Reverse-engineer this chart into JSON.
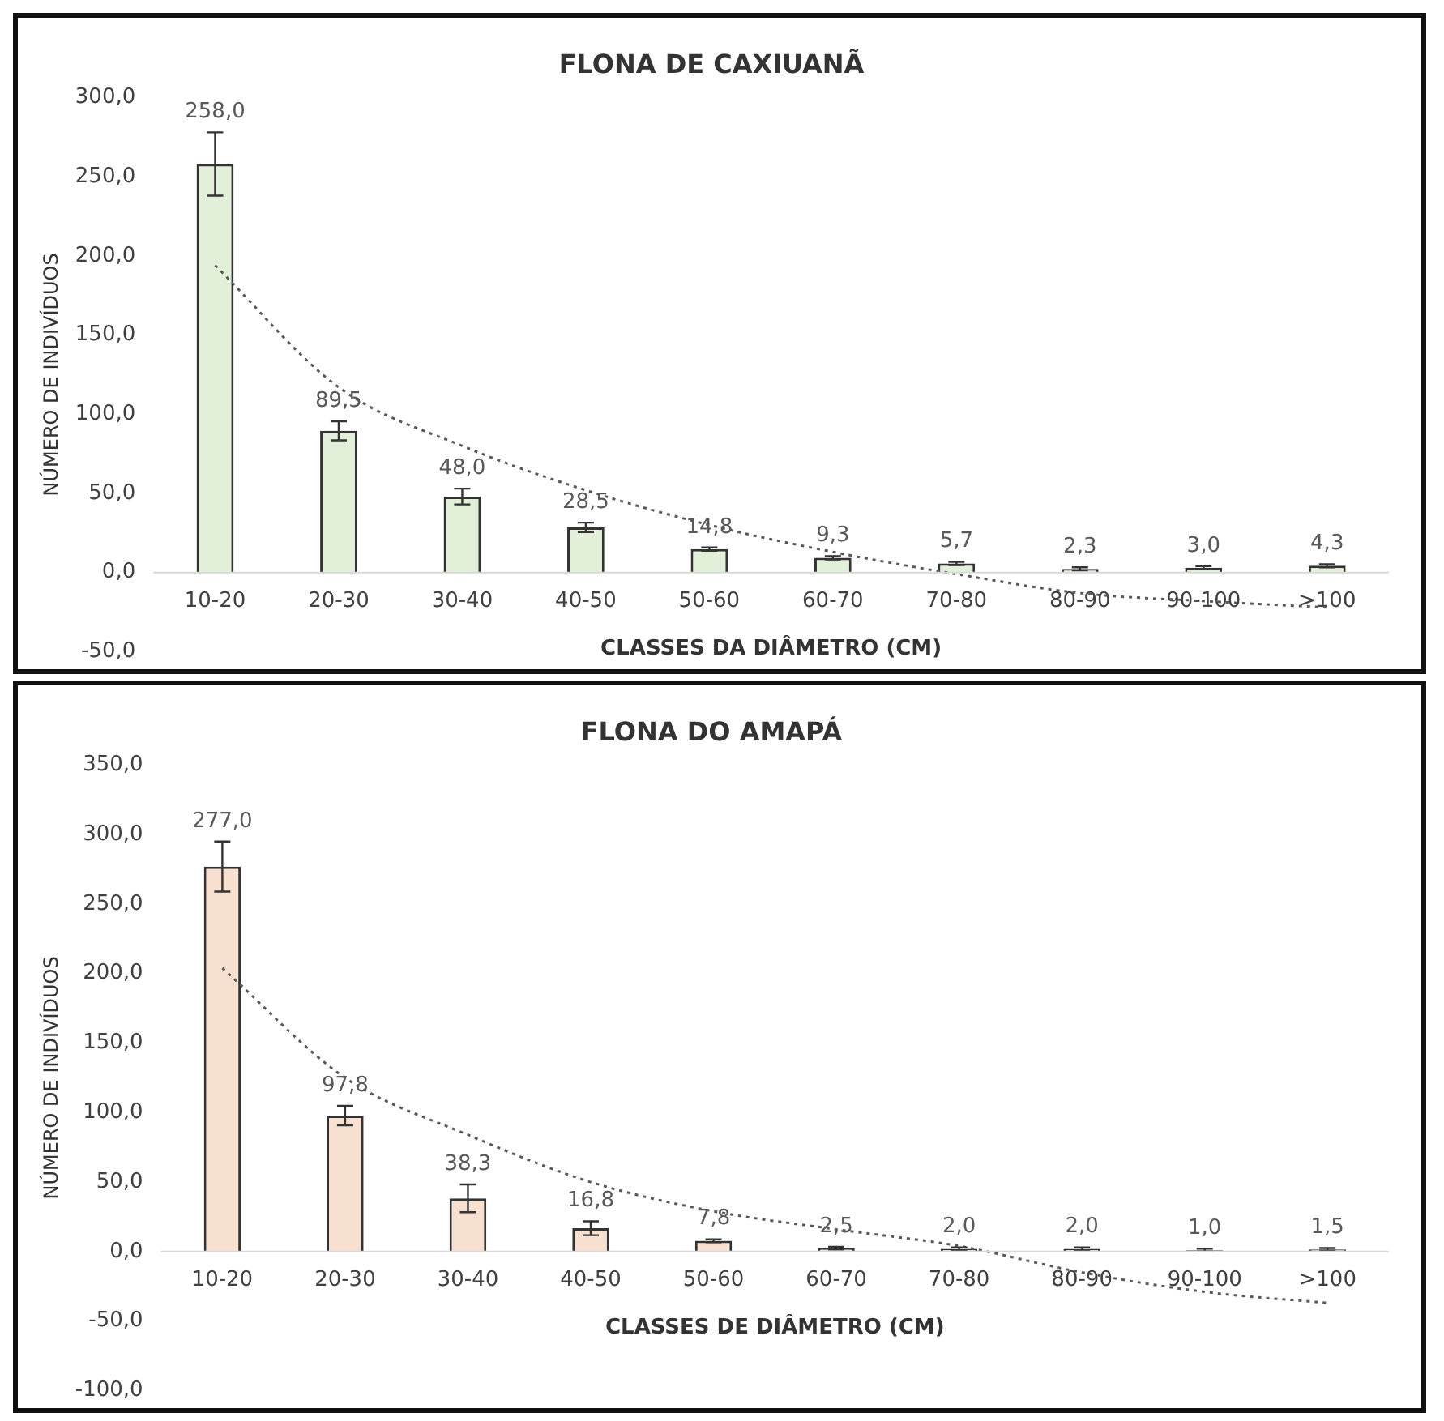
{
  "chart_data": [
    {
      "type": "bar",
      "title": "FLONA DE CAXIUANÃ",
      "xlabel": "CLASSES DA DIÂMETRO (CM)",
      "ylabel": "NÚMERO DE INDIVÍDUOS",
      "categories": [
        "10-20",
        "20-30",
        "30-40",
        "40-50",
        "50-60",
        "60-70",
        "70-80",
        "80-90",
        "90-100",
        ">100"
      ],
      "series": [
        {
          "color": "#e2efd9",
          "values": [
            258.0,
            89.5,
            48.0,
            28.5,
            14.8,
            9.3,
            5.7,
            2.3,
            3.0,
            4.3
          ],
          "errors": [
            20,
            6,
            5,
            3,
            1,
            1,
            1,
            1,
            1,
            1
          ],
          "value_labels": [
            "258,0",
            "89,5",
            "48,0",
            "28,5",
            "14,8",
            "9,3",
            "5,7",
            "2,3",
            "3,0",
            "4,3"
          ]
        },
        {
          "type": "line",
          "color": "#595959",
          "line_style": "dotted",
          "marker": "none",
          "values": [
            194,
            117,
            80,
            52,
            30,
            13,
            -1,
            -13,
            -18,
            -22
          ]
        }
      ],
      "ylim": [
        -50,
        300
      ],
      "yticks": [
        {
          "value": -50,
          "label": "-50,0"
        },
        {
          "value": 0,
          "label": "0,0"
        },
        {
          "value": 50,
          "label": "50,0"
        },
        {
          "value": 100,
          "label": "100,0"
        },
        {
          "value": 150,
          "label": "150,0"
        },
        {
          "value": 200,
          "label": "200,0"
        },
        {
          "value": 250,
          "label": "250,0"
        },
        {
          "value": 300,
          "label": "300,0"
        }
      ],
      "grid": false,
      "legend": false
    },
    {
      "type": "bar",
      "title": "FLONA DO AMAPÁ",
      "xlabel": "CLASSES DE DIÂMETRO (CM)",
      "ylabel": "NÚMERO DE INDIVÍDUOS",
      "categories": [
        "10-20",
        "20-30",
        "30-40",
        "40-50",
        "50-60",
        "60-70",
        "70-80",
        "80-90",
        "90-100",
        ">100"
      ],
      "series": [
        {
          "color": "#f8e0d0",
          "values": [
            277.0,
            97.8,
            38.3,
            16.8,
            7.8,
            2.5,
            2.0,
            2.0,
            1.0,
            1.5
          ],
          "errors": [
            18,
            7,
            10,
            5,
            1,
            1,
            1,
            1,
            1,
            1
          ],
          "value_labels": [
            "277,0",
            "97,8",
            "38,3",
            "16,8",
            "7,8",
            "2,5",
            "2,0",
            "2,0",
            "1,0",
            "1,5"
          ]
        },
        {
          "type": "line",
          "color": "#595959",
          "line_style": "dotted",
          "marker": "none",
          "values": [
            204,
            125,
            84,
            50,
            29,
            16,
            4,
            -15,
            -29,
            -37
          ]
        }
      ],
      "ylim": [
        -100,
        350
      ],
      "yticks": [
        {
          "value": -100,
          "label": "-100,0"
        },
        {
          "value": -50,
          "label": "-50,0"
        },
        {
          "value": 0,
          "label": "0,0"
        },
        {
          "value": 50,
          "label": "50,0"
        },
        {
          "value": 100,
          "label": "100,0"
        },
        {
          "value": 150,
          "label": "150,0"
        },
        {
          "value": 200,
          "label": "200,0"
        },
        {
          "value": 250,
          "label": "250,0"
        },
        {
          "value": 300,
          "label": "300,0"
        },
        {
          "value": 350,
          "label": "350,0"
        }
      ],
      "grid": false,
      "legend": false
    }
  ]
}
